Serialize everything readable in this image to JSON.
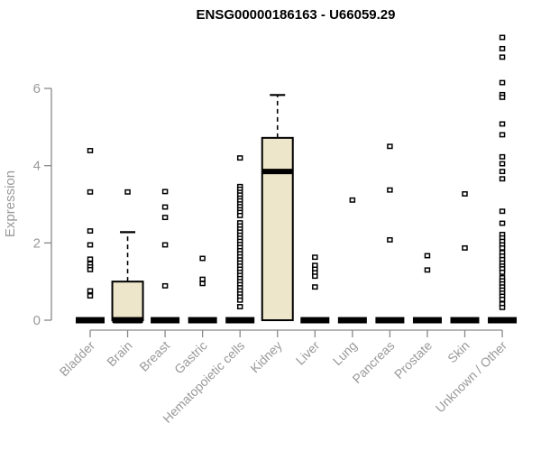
{
  "chart_data": {
    "type": "boxplot",
    "title": "ENSG00000186163 - U66059.29",
    "ylabel": "Expression",
    "xlabel": "",
    "yticks": [
      0,
      2,
      4,
      6
    ],
    "ylim": [
      0,
      7.5
    ],
    "grid": false,
    "legend": "none",
    "colors": {
      "box_fill": "#ede6ca",
      "box_stroke": "#000000",
      "axis_line": "#888888",
      "axis_text": "#999999",
      "title_text": "#000000",
      "outlier_stroke": "#000000",
      "outlier_fill": "#ffffff"
    },
    "categories": [
      {
        "label": "Bladder",
        "box": null,
        "zero_bar": true,
        "outliers": [
          4.39,
          3.32,
          2.31,
          1.95,
          1.58,
          1.46,
          1.38,
          1.31,
          0.76,
          0.63
        ]
      },
      {
        "label": "Brain",
        "box": {
          "q1": 0,
          "median": 0,
          "q3": 1.0,
          "whisker_high": 2.28
        },
        "zero_bar": true,
        "outliers": [
          3.32
        ]
      },
      {
        "label": "Breast",
        "box": null,
        "zero_bar": true,
        "outliers": [
          3.33,
          2.93,
          2.66,
          1.95,
          0.89
        ]
      },
      {
        "label": "Gastric",
        "box": null,
        "zero_bar": true,
        "outliers": [
          1.6,
          1.06,
          0.95
        ]
      },
      {
        "label": "Hematopoietic cells",
        "box": null,
        "zero_bar": true,
        "outliers": [
          4.2,
          3.46,
          3.39,
          3.31,
          3.24,
          3.16,
          3.09,
          3.01,
          2.94,
          2.86,
          2.79,
          2.71,
          2.52,
          2.44,
          2.36,
          2.28,
          2.2,
          2.12,
          2.04,
          1.96,
          1.88,
          1.8,
          1.72,
          1.64,
          1.56,
          1.48,
          1.4,
          1.32,
          1.24,
          1.16,
          1.08,
          1.0,
          0.92,
          0.84,
          0.76,
          0.68,
          0.6,
          0.52,
          0.35
        ]
      },
      {
        "label": "Kidney",
        "box": {
          "q1": 0,
          "median": 3.85,
          "q3": 4.72,
          "whisker_high": 5.83
        },
        "zero_bar": false,
        "outliers": []
      },
      {
        "label": "Liver",
        "box": null,
        "zero_bar": true,
        "outliers": [
          1.63,
          1.42,
          1.32,
          1.23,
          1.14,
          0.86
        ]
      },
      {
        "label": "Lung",
        "box": null,
        "zero_bar": true,
        "outliers": [
          3.11
        ]
      },
      {
        "label": "Pancreas",
        "box": null,
        "zero_bar": true,
        "outliers": [
          4.5,
          3.37,
          2.08
        ]
      },
      {
        "label": "Prostate",
        "box": null,
        "zero_bar": true,
        "outliers": [
          1.67,
          1.3
        ]
      },
      {
        "label": "Skin",
        "box": null,
        "zero_bar": true,
        "outliers": [
          3.27,
          1.87
        ]
      },
      {
        "label": "Unknown / Other",
        "box": null,
        "zero_bar": true,
        "outliers": [
          7.32,
          7.03,
          6.81,
          6.15,
          5.84,
          5.77,
          5.08,
          4.8,
          4.23,
          4.05,
          3.85,
          3.66,
          2.82,
          2.51,
          2.22,
          2.13,
          2.04,
          1.95,
          1.87,
          1.75,
          1.66,
          1.57,
          1.48,
          1.4,
          1.33,
          1.24,
          1.1,
          1.02,
          0.94,
          0.86,
          0.78,
          0.7,
          0.62,
          0.54,
          0.42,
          0.33
        ]
      }
    ]
  }
}
